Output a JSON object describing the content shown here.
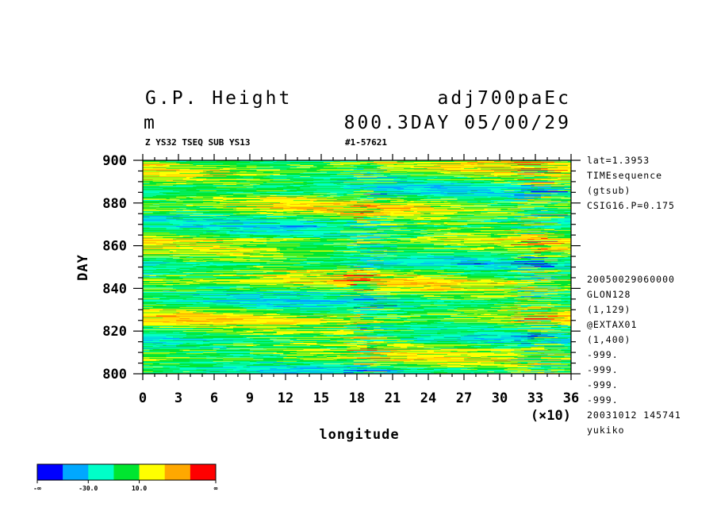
{
  "header": {
    "title_left": "G.P. Height",
    "title_right": "adj700paEc",
    "units": "m",
    "time_label": "800.3DAY 05/00/29",
    "sub_left": "Z YS32 TSEQ SUB YS13",
    "sub_right": "#1-57621"
  },
  "info_top": [
    "lat=1.3953",
    "TIMEsequence",
    "(gtsub)",
    "CSIG16.P=0.175"
  ],
  "info_bottom": [
    "20050029060000",
    "GLON128",
    "(1,129)",
    "@EXTAX01",
    "(1,400)",
    "-999.",
    "-999.",
    "-999.",
    "-999.",
    "20031012 145741",
    "yukiko"
  ],
  "chart_data": {
    "type": "heatmap",
    "xlabel": "longitude",
    "x_multiplier_label": "(×10)",
    "ylabel": "DAY",
    "xlim": [
      0,
      36
    ],
    "ylim": [
      800,
      900
    ],
    "x_ticks": [
      "0",
      "3",
      "6",
      "9",
      "12",
      "15",
      "18",
      "21",
      "24",
      "27",
      "30",
      "33",
      "36"
    ],
    "y_ticks": [
      "800",
      "820",
      "840",
      "860",
      "880",
      "900"
    ],
    "colorbar": {
      "colors": [
        "#0000ff",
        "#00a8ff",
        "#00ffc8",
        "#00e630",
        "#ffff00",
        "#ffa800",
        "#ff0000"
      ],
      "labels": [
        "-∞",
        "-30.0",
        "10.0",
        "∞"
      ]
    }
  }
}
